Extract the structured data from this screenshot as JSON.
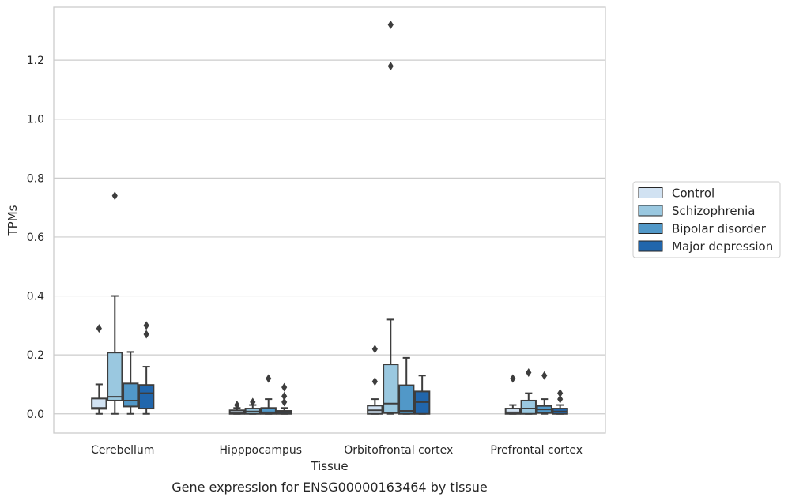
{
  "chart_data": {
    "type": "box",
    "xlabel": "Tissue",
    "ylabel": "TPMs",
    "caption": "Gene expression for ENSG00000163464 by tissue",
    "categories": [
      "Cerebellum",
      "Hipppocampus",
      "Orbitofrontal cortex",
      "Prefrontal cortex"
    ],
    "ylim": [
      -0.065,
      1.38
    ],
    "yticks": [
      0.0,
      0.2,
      0.4,
      0.6,
      0.8,
      1.0,
      1.2
    ],
    "ytick_labels": [
      "0.0",
      "0.2",
      "0.4",
      "0.6",
      "0.8",
      "1.0",
      "1.2"
    ],
    "grid": "horizontal",
    "legend_position": "right",
    "series": [
      {
        "name": "Control",
        "color": "#d1e2f2",
        "boxes": [
          {
            "whislo": 0.0,
            "q1": 0.017,
            "med": 0.02,
            "q3": 0.052,
            "whishi": 0.1,
            "fliers": [
              0.29
            ]
          },
          {
            "whislo": 0.0,
            "q1": 0.0,
            "med": 0.005,
            "q3": 0.012,
            "whishi": 0.02,
            "fliers": [
              0.03
            ]
          },
          {
            "whislo": 0.0,
            "q1": 0.0,
            "med": 0.012,
            "q3": 0.028,
            "whishi": 0.05,
            "fliers": [
              0.11,
              0.22
            ]
          },
          {
            "whislo": 0.0,
            "q1": 0.0,
            "med": 0.005,
            "q3": 0.018,
            "whishi": 0.03,
            "fliers": [
              0.12
            ]
          }
        ]
      },
      {
        "name": "Schizophrenia",
        "color": "#9ac8e0",
        "boxes": [
          {
            "whislo": 0.0,
            "q1": 0.045,
            "med": 0.058,
            "q3": 0.208,
            "whishi": 0.4,
            "fliers": [
              0.74
            ]
          },
          {
            "whislo": 0.0,
            "q1": 0.0,
            "med": 0.008,
            "q3": 0.018,
            "whishi": 0.03,
            "fliers": [
              0.04
            ]
          },
          {
            "whislo": 0.0,
            "q1": 0.003,
            "med": 0.035,
            "q3": 0.168,
            "whishi": 0.32,
            "fliers": [
              1.18,
              1.32
            ]
          },
          {
            "whislo": 0.0,
            "q1": 0.0,
            "med": 0.018,
            "q3": 0.045,
            "whishi": 0.07,
            "fliers": [
              0.14
            ]
          }
        ]
      },
      {
        "name": "Bipolar disorder",
        "color": "#5198c8",
        "boxes": [
          {
            "whislo": 0.0,
            "q1": 0.025,
            "med": 0.045,
            "q3": 0.103,
            "whishi": 0.21,
            "fliers": []
          },
          {
            "whislo": 0.0,
            "q1": 0.0,
            "med": 0.005,
            "q3": 0.02,
            "whishi": 0.05,
            "fliers": [
              0.12
            ]
          },
          {
            "whislo": 0.0,
            "q1": 0.0,
            "med": 0.01,
            "q3": 0.097,
            "whishi": 0.19,
            "fliers": []
          },
          {
            "whislo": 0.0,
            "q1": 0.003,
            "med": 0.015,
            "q3": 0.027,
            "whishi": 0.05,
            "fliers": [
              0.13
            ]
          }
        ]
      },
      {
        "name": "Major depression",
        "color": "#2166ac",
        "boxes": [
          {
            "whislo": 0.0,
            "q1": 0.018,
            "med": 0.07,
            "q3": 0.098,
            "whishi": 0.16,
            "fliers": [
              0.27,
              0.3
            ]
          },
          {
            "whislo": 0.0,
            "q1": 0.0,
            "med": 0.005,
            "q3": 0.01,
            "whishi": 0.02,
            "fliers": [
              0.04,
              0.06,
              0.09
            ]
          },
          {
            "whislo": 0.0,
            "q1": 0.0,
            "med": 0.04,
            "q3": 0.076,
            "whishi": 0.13,
            "fliers": []
          },
          {
            "whislo": 0.0,
            "q1": 0.0,
            "med": 0.008,
            "q3": 0.018,
            "whishi": 0.03,
            "fliers": [
              0.05,
              0.07
            ]
          }
        ]
      }
    ]
  }
}
